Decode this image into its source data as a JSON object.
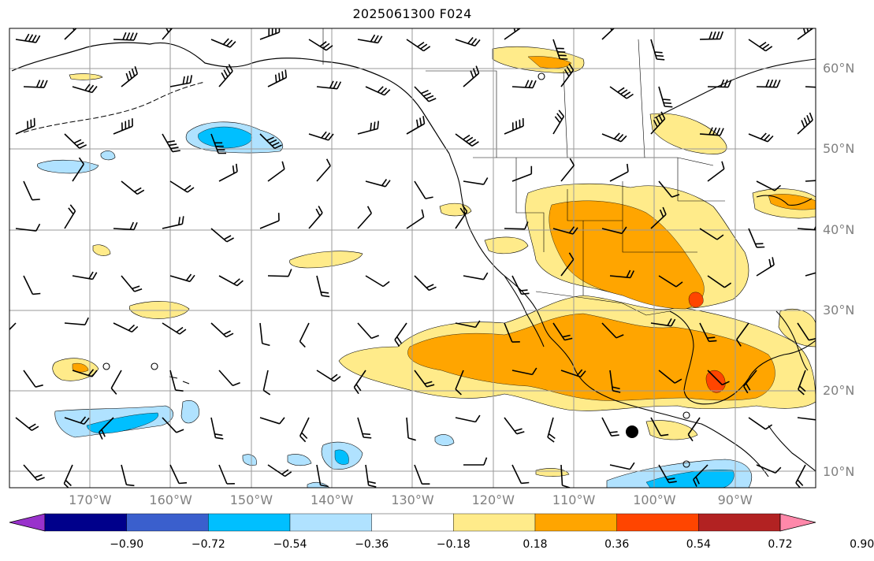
{
  "title": "2025061300 F024",
  "map": {
    "lon_range": [
      -180,
      -80
    ],
    "lat_range": [
      8,
      65
    ],
    "lat_labels": [
      {
        "lat": 60,
        "text": "60°N"
      },
      {
        "lat": 50,
        "text": "50°N"
      },
      {
        "lat": 40,
        "text": "40°N"
      },
      {
        "lat": 30,
        "text": "30°N"
      },
      {
        "lat": 20,
        "text": "20°N"
      },
      {
        "lat": 10,
        "text": "10°N"
      }
    ],
    "lon_labels": [
      {
        "lon": -170,
        "text": "170°W"
      },
      {
        "lon": -160,
        "text": "160°W"
      },
      {
        "lon": -150,
        "text": "150°W"
      },
      {
        "lon": -140,
        "text": "140°W"
      },
      {
        "lon": -130,
        "text": "130°W"
      },
      {
        "lon": -120,
        "text": "120°W"
      },
      {
        "lon": -110,
        "text": "110°W"
      },
      {
        "lon": -100,
        "text": "100°W"
      },
      {
        "lon": -90,
        "text": "90°W"
      }
    ],
    "gridline_color": "#9a9a9a"
  },
  "colorbar": {
    "colors": [
      "#9932cc",
      "#00008b",
      "#3a5fcd",
      "#00bfff",
      "#b0e2ff",
      "#ffffff",
      "#ffeb8a",
      "#ffa500",
      "#ff4500",
      "#b22222",
      "#ff88aa"
    ],
    "labels": [
      "−0.90",
      "−0.72",
      "−0.54",
      "−0.36",
      "−0.18",
      "0.18",
      "0.36",
      "0.54",
      "0.72",
      "0.90"
    ]
  }
}
